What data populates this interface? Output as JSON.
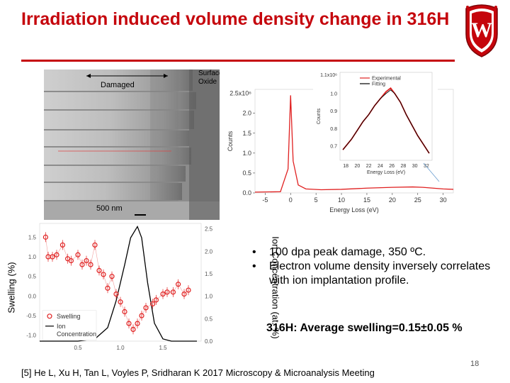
{
  "slide": {
    "title": "Irradiation induced volume density change in 316H",
    "page_number": "18",
    "reference": "[5] He L, Xu H, Tan L, Voyles P, Sridharan K 2017 Microscopy & Microanalysis Meeting",
    "brand_color": "#c5050c"
  },
  "micrograph": {
    "label_damaged": "Damaged",
    "label_surface": "Surface",
    "label_oxide": "Oxide",
    "scale_bar": "500 nm"
  },
  "bullets": [
    "100 dpa peak damage, 350 ºC.",
    "Electron volume density inversely correlates with ion implantation profile."
  ],
  "average": "316H: Average swelling=0.15±0.05 %",
  "chart_data": [
    {
      "type": "line",
      "xlabel": "Energy Loss (eV)",
      "ylabel": "Counts",
      "ylim_label": "2.5x10⁶",
      "x_ticks": [
        "-5",
        "0",
        "5",
        "10",
        "15",
        "20",
        "25",
        "30"
      ],
      "y_ticks": [
        "0.0",
        "0.5",
        "1.0",
        "1.5",
        "2.0"
      ],
      "xlim": [
        -7,
        32
      ],
      "ylim": [
        0,
        2.6
      ],
      "series": [
        {
          "color": "#e02020",
          "x": [
            -7,
            -2,
            -0.5,
            0,
            0.5,
            1.5,
            3,
            6,
            10,
            15,
            20,
            24,
            26,
            28,
            30,
            32
          ],
          "y": [
            0.02,
            0.03,
            0.6,
            2.45,
            0.8,
            0.2,
            0.1,
            0.08,
            0.09,
            0.12,
            0.14,
            0.15,
            0.14,
            0.12,
            0.1,
            0.09
          ]
        }
      ],
      "inset": {
        "xlabel": "Energy Loss (eV)",
        "ylabel": "Counts",
        "y_top_label": "1.1x10⁶",
        "x_ticks": [
          "18",
          "20",
          "22",
          "24",
          "26",
          "28",
          "30",
          "32"
        ],
        "y_ticks": [
          "0.7",
          "0.8",
          "0.9",
          "1.0"
        ],
        "xlim": [
          17,
          33
        ],
        "ylim": [
          0.62,
          1.12
        ],
        "legend": [
          "Experimental",
          "Fitting"
        ],
        "series": [
          {
            "name": "Experimental",
            "color": "#e02020",
            "x": [
              17.5,
              19,
              20,
              21,
              22,
              23,
              24,
              25,
              25.8,
              26.5,
              27.5,
              28.5,
              29.5,
              30.5,
              31.5,
              32.5
            ],
            "y": [
              0.68,
              0.74,
              0.79,
              0.84,
              0.88,
              0.93,
              0.97,
              1.01,
              1.03,
              1.0,
              0.95,
              0.88,
              0.82,
              0.76,
              0.71,
              0.66
            ]
          },
          {
            "name": "Fitting",
            "color": "#000000",
            "x": [
              17.5,
              19,
              20,
              21,
              22,
              23,
              24,
              25,
              25.8,
              26.5,
              27.5,
              28.5,
              29.5,
              30.5,
              31.5,
              32.5
            ],
            "y": [
              0.68,
              0.74,
              0.79,
              0.84,
              0.88,
              0.93,
              0.97,
              1.0,
              1.02,
              1.0,
              0.95,
              0.88,
              0.82,
              0.76,
              0.71,
              0.66
            ]
          }
        ]
      }
    },
    {
      "type": "scatter",
      "ylabel_left": "Swelling (%)",
      "ylabel_right": "Ion Concentration (at. %)",
      "x_ticks": [
        "0.5",
        "1.0",
        "1.5"
      ],
      "y_left_ticks": [
        "-1.0",
        "-0.5",
        "0.0",
        "0.5",
        "1.0",
        "1.5"
      ],
      "y_right_ticks": [
        "0.0",
        "0.5",
        "1.0",
        "1.5",
        "2.0",
        "2.5"
      ],
      "xlim": [
        0.05,
        1.95
      ],
      "ylim_left": [
        -1.15,
        1.85
      ],
      "ylim_right": [
        0,
        2.62
      ],
      "legend": [
        "Swelling",
        "Ion Concentration"
      ],
      "series": [
        {
          "name": "Swelling",
          "color": "#e02020",
          "x": [
            0.12,
            0.15,
            0.2,
            0.25,
            0.32,
            0.38,
            0.42,
            0.5,
            0.55,
            0.6,
            0.65,
            0.7,
            0.75,
            0.8,
            0.85,
            0.9,
            0.95,
            1.0,
            1.05,
            1.1,
            1.15,
            1.2,
            1.25,
            1.3,
            1.38,
            1.42,
            1.5,
            1.55,
            1.62,
            1.68,
            1.75,
            1.8
          ],
          "y": [
            1.5,
            1.0,
            1.0,
            1.05,
            1.3,
            0.95,
            0.9,
            1.05,
            0.8,
            0.9,
            0.8,
            1.3,
            0.65,
            0.55,
            0.2,
            0.5,
            0.05,
            -0.15,
            -0.4,
            -0.7,
            -0.85,
            -0.7,
            -0.5,
            -0.3,
            -0.2,
            -0.1,
            0.05,
            0.1,
            0.1,
            0.3,
            0.05,
            0.15
          ]
        },
        {
          "name": "Ion Concentration",
          "color": "#000000",
          "x": [
            0.05,
            0.5,
            0.7,
            0.85,
            0.95,
            1.05,
            1.12,
            1.2,
            1.25,
            1.32,
            1.4,
            1.5,
            1.6,
            1.9
          ],
          "y": [
            0.0,
            0.0,
            0.05,
            0.3,
            0.9,
            1.7,
            2.3,
            2.55,
            2.3,
            1.3,
            0.4,
            0.05,
            0.0,
            0.0
          ]
        }
      ]
    }
  ]
}
